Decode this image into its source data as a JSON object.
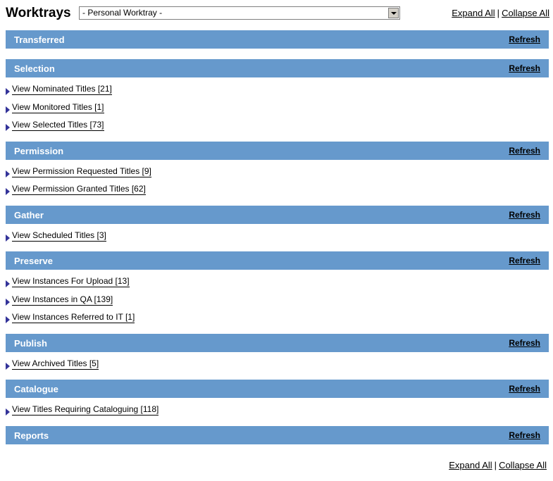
{
  "header": {
    "title": "Worktrays",
    "select_value": "- Personal Worktray -",
    "expand_all": "Expand All",
    "separator": "|",
    "collapse_all": "Collapse All"
  },
  "sections": [
    {
      "label": "Transferred",
      "refresh": "Refresh",
      "items": []
    },
    {
      "label": "Selection",
      "refresh": "Refresh",
      "items": [
        "View Nominated Titles [21]",
        "View Monitored Titles [1]",
        "View Selected Titles [73]"
      ]
    },
    {
      "label": "Permission",
      "refresh": "Refresh",
      "items": [
        "View Permission Requested Titles [9]",
        "View Permission Granted Titles [62]"
      ]
    },
    {
      "label": "Gather",
      "refresh": "Refresh",
      "items": [
        "View Scheduled Titles [3]"
      ]
    },
    {
      "label": "Preserve",
      "refresh": "Refresh",
      "items": [
        "View Instances For Upload [13]",
        "View Instances in QA [139]",
        "View Instances Referred to IT [1]"
      ]
    },
    {
      "label": "Publish",
      "refresh": "Refresh",
      "items": [
        "View Archived Titles [5]"
      ]
    },
    {
      "label": "Catalogue",
      "refresh": "Refresh",
      "items": [
        "View Titles Requiring Cataloguing [118]"
      ]
    },
    {
      "label": "Reports",
      "refresh": "Refresh",
      "items": []
    }
  ],
  "footer": {
    "expand_all": "Expand All",
    "separator": "|",
    "collapse_all": "Collapse All"
  },
  "colors": {
    "section_bar": "#6699cc",
    "triangle": "#333399"
  }
}
